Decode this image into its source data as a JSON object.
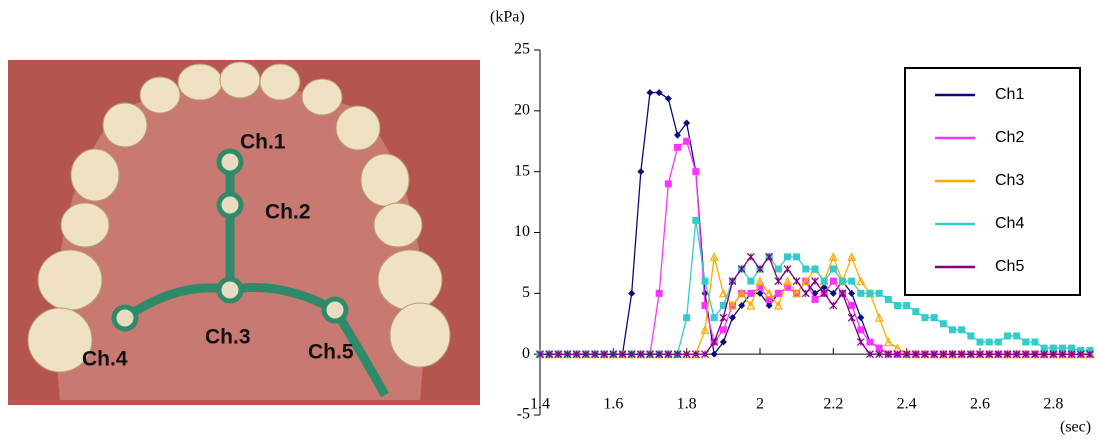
{
  "photo": {
    "labels": [
      "Ch.1",
      "Ch.2",
      "Ch.3",
      "Ch.4",
      "Ch.5"
    ]
  },
  "chart_data": {
    "type": "line",
    "y_label": "(kPa)",
    "x_label": "(sec)",
    "xlim": [
      1.4,
      2.9
    ],
    "ylim": [
      -5,
      25
    ],
    "xticks": [
      1.4,
      1.6,
      1.8,
      2,
      2.2,
      2.4,
      2.6,
      2.8
    ],
    "yticks": [
      -5,
      0,
      5,
      10,
      15,
      20,
      25
    ],
    "legend": "upper right",
    "x": [
      1.4,
      1.425,
      1.45,
      1.475,
      1.5,
      1.525,
      1.55,
      1.575,
      1.6,
      1.625,
      1.65,
      1.675,
      1.7,
      1.725,
      1.75,
      1.775,
      1.8,
      1.825,
      1.85,
      1.875,
      1.9,
      1.925,
      1.95,
      1.975,
      2,
      2.025,
      2.05,
      2.075,
      2.1,
      2.125,
      2.15,
      2.175,
      2.2,
      2.225,
      2.25,
      2.275,
      2.3,
      2.325,
      2.35,
      2.375,
      2.4,
      2.425,
      2.45,
      2.475,
      2.5,
      2.525,
      2.55,
      2.575,
      2.6,
      2.625,
      2.65,
      2.675,
      2.7,
      2.725,
      2.75,
      2.775,
      2.8,
      2.825,
      2.85,
      2.875,
      2.9
    ],
    "series": [
      {
        "name": "Ch1",
        "color": "#0a0a80",
        "marker": "diamond",
        "values": [
          0,
          0,
          0,
          0,
          0,
          0,
          0,
          0,
          0,
          0,
          5,
          15,
          21.5,
          21.5,
          21,
          18,
          19,
          15,
          5,
          0,
          1,
          3,
          4,
          5,
          5,
          4,
          5,
          5.5,
          5,
          6,
          5,
          5.5,
          5,
          6,
          5,
          3,
          1,
          0.5,
          0,
          0,
          0,
          0,
          0,
          0,
          0,
          0,
          0,
          0,
          0,
          0,
          0,
          0,
          0,
          0,
          0,
          0,
          0,
          0,
          0,
          0,
          0
        ]
      },
      {
        "name": "Ch2",
        "color": "#ff33ff",
        "marker": "square",
        "values": [
          0,
          0,
          0,
          0,
          0,
          0,
          0,
          0,
          0,
          0,
          0,
          0,
          0,
          5,
          14,
          17,
          17.5,
          15,
          4,
          1,
          2,
          4,
          5,
          5,
          5.5,
          4.5,
          5,
          5.5,
          5,
          6,
          4.5,
          5,
          6,
          5,
          4,
          2,
          1,
          0.5,
          0,
          0,
          0,
          0,
          0,
          0,
          0,
          0,
          0,
          0,
          0,
          0,
          0,
          0,
          0,
          0,
          0,
          0,
          0,
          0,
          0,
          0,
          0
        ]
      },
      {
        "name": "Ch3",
        "color": "#ffaa00",
        "marker": "triangle",
        "values": [
          0,
          0,
          0,
          0,
          0,
          0,
          0,
          0,
          0,
          0,
          0,
          0,
          0,
          0,
          0,
          0,
          0,
          0,
          2,
          8,
          5,
          4,
          5,
          4,
          6,
          5,
          4,
          6,
          5,
          6,
          7,
          6,
          8,
          6,
          8,
          6,
          5,
          3,
          1,
          0.5,
          0,
          0,
          0,
          0,
          0,
          0,
          0,
          0,
          0,
          0,
          0,
          0,
          0,
          0,
          0,
          0,
          0,
          0,
          0,
          0,
          0
        ]
      },
      {
        "name": "Ch4",
        "color": "#33cccc",
        "marker": "square",
        "values": [
          0,
          0,
          0,
          0,
          0,
          0,
          0,
          0,
          0,
          0,
          0,
          0,
          0,
          0,
          0,
          0,
          3,
          11,
          6,
          3,
          4,
          6,
          7,
          6,
          7,
          8,
          7,
          8,
          8,
          7,
          7,
          6,
          7,
          6,
          6,
          5,
          5,
          5,
          4.5,
          4,
          4,
          3.5,
          3,
          3,
          2.5,
          2,
          2,
          1.5,
          1,
          1,
          1,
          1.5,
          1.5,
          1,
          1,
          0.5,
          0.5,
          0.5,
          0.5,
          0.3,
          0.3
        ]
      },
      {
        "name": "Ch5",
        "color": "#800080",
        "marker": "star",
        "values": [
          0,
          0,
          0,
          0,
          0,
          0,
          0,
          0,
          0,
          0,
          0,
          0,
          0,
          0,
          0,
          0,
          0,
          0,
          0,
          1,
          3,
          6,
          7,
          8,
          7,
          8,
          6,
          7,
          6,
          5,
          6,
          5,
          4,
          5,
          3,
          1,
          0,
          0,
          0,
          0,
          0,
          0,
          0,
          0,
          0,
          0,
          0,
          0,
          0,
          0,
          0,
          0,
          0,
          0,
          0,
          0,
          0,
          0,
          0,
          0,
          0
        ]
      }
    ]
  }
}
